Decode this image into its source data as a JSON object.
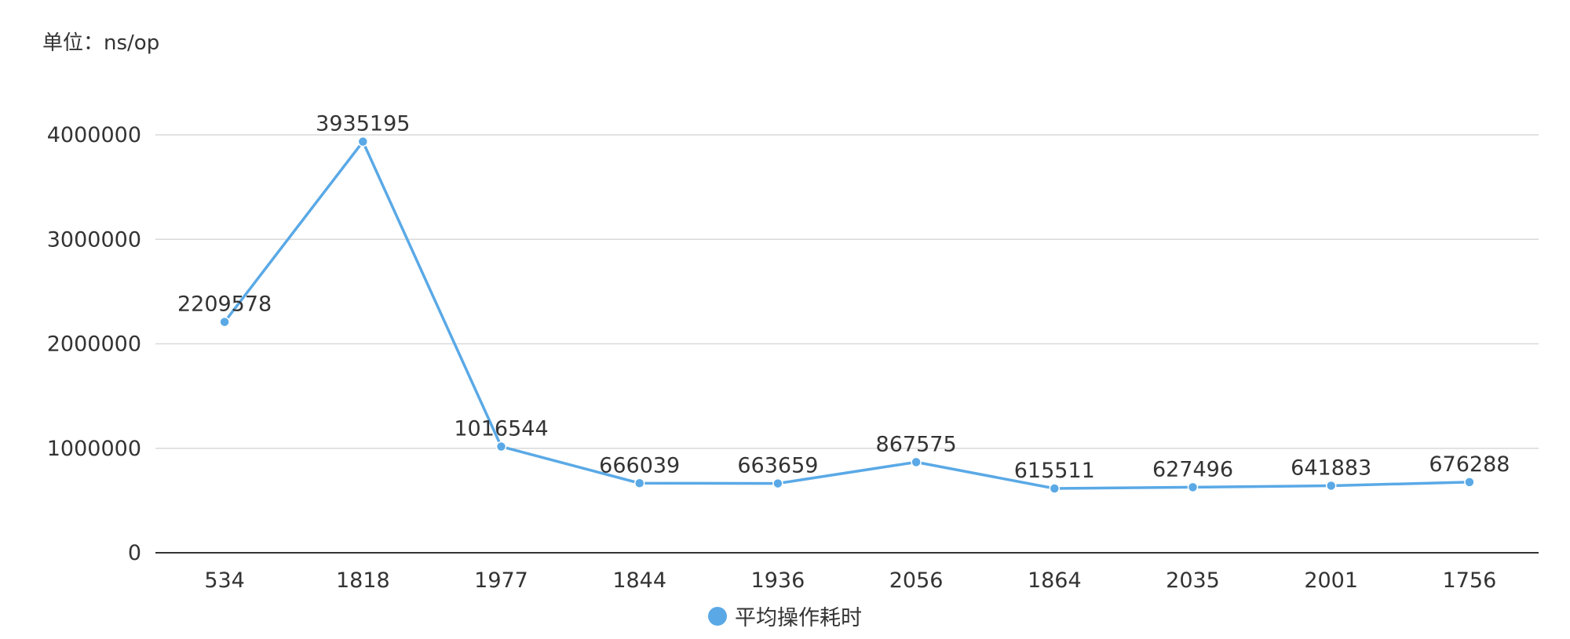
{
  "chart_data": {
    "type": "line",
    "unit_label": "单位：ns/op",
    "categories": [
      "534",
      "1818",
      "1977",
      "1844",
      "1936",
      "2056",
      "1864",
      "2035",
      "2001",
      "1756"
    ],
    "series": [
      {
        "name": "平均操作耗时",
        "values": [
          2209578,
          3935195,
          1016544,
          666039,
          663659,
          867575,
          615511,
          627496,
          641883,
          676288
        ],
        "color": "#5aa9e6"
      }
    ],
    "yticks": [
      "0",
      "1000000",
      "2000000",
      "3000000",
      "4000000"
    ],
    "ylim": [
      0,
      4000000
    ],
    "grid": true,
    "legend_position": "bottom-center",
    "data_labels": true
  }
}
